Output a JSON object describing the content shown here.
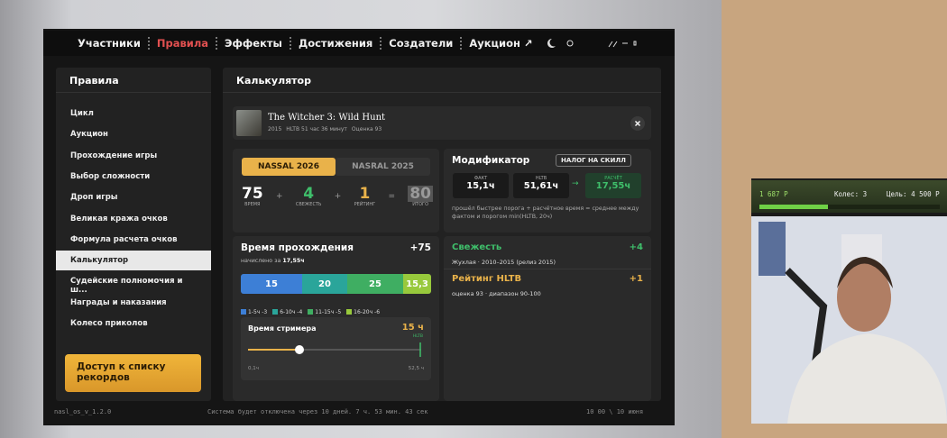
{
  "nav": {
    "items": [
      "Участники",
      "Правила",
      "Эффекты",
      "Достижения",
      "Создатели",
      "Аукцион ↗"
    ],
    "active": 1
  },
  "sidebar": {
    "title": "Правила",
    "items": [
      "Цикл",
      "Аукцион",
      "Прохождение игры",
      "Выбор сложности",
      "Дроп игры",
      "Великая кража очков",
      "Формула расчета очков",
      "Калькулятор",
      "Судейские полномочия и ш...",
      "Награды и наказания",
      "Колесо приколов"
    ],
    "active": 7,
    "button": "Доступ к списку рекордов"
  },
  "main": {
    "title": "Калькулятор"
  },
  "game": {
    "title": "The Witcher 3: Wild Hunt",
    "year": "2015",
    "hltb": "HLTB 51 час 36 минут",
    "rating": "Оценка 93"
  },
  "score": {
    "tabs": [
      "NASSAL 2026",
      "NASRAL 2025"
    ],
    "items": [
      {
        "value": "75",
        "label": "ВРЕМЯ"
      },
      {
        "value": "4",
        "label": "СВЕЖЕСТЬ"
      },
      {
        "value": "1",
        "label": "РЕЙТИНГ"
      },
      {
        "value": "80",
        "label": "ИТОГО"
      }
    ],
    "operators": [
      "+",
      "+",
      "="
    ]
  },
  "modifier": {
    "title": "Модификатор",
    "badge": "НАЛОГ НА СКИЛЛ",
    "boxes": [
      {
        "label": "ФАКТ",
        "value": "15,1ч"
      },
      {
        "label": "HLTB",
        "value": "51,61ч"
      },
      {
        "label": "РАСЧЁТ",
        "value": "17,55ч"
      }
    ],
    "arrow": "→",
    "note": "прошёл быстрее порога + расчётное время = среднее между фактом и порогом min(HLTB, 20ч)"
  },
  "time": {
    "title": "Время прохождения",
    "points": "+75",
    "accrued": "начислено за",
    "accrued_value": "17,55ч",
    "segments": [
      "15",
      "20",
      "25",
      "15,3"
    ],
    "legend": [
      "1-5ч -3",
      "6-10ч -4",
      "11-15ч -5",
      "16-20ч -6"
    ],
    "streamer": {
      "title": "Время стримера",
      "value": "15 ч",
      "tag": "HLTB",
      "min": "0,1ч",
      "max": "52,5 ч"
    }
  },
  "freshness": {
    "title": "Свежесть",
    "points": "+4",
    "text": "Жухлая · 2010–2015 (релиз 2015)"
  },
  "rating": {
    "title": "Рейтинг HLTB",
    "points": "+1",
    "text": "оценка 93 · диапазон 90-100"
  },
  "footer": {
    "version": "nasl_os_v_1.2.0",
    "countdown": "Система будет отключена через 10 дней. 7 ч. 53 мин. 43 сек",
    "clock": "10 00 \\ 10 июня"
  },
  "overlay": {
    "balance": "1 687 Р",
    "wheels": "Колес: 3",
    "goal": "Цель: 4 500 Р"
  }
}
